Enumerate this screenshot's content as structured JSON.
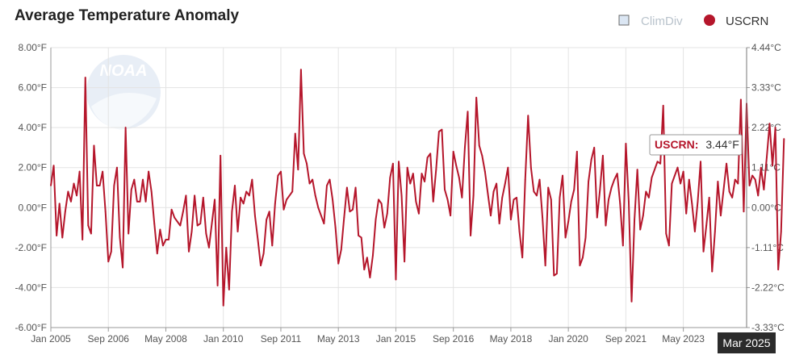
{
  "colors": {
    "series": "#b5162b",
    "climdiv_marker_fill": "#dbe6f3",
    "climdiv_marker_stroke": "#6a6a6a",
    "climdiv_label": "#b9c3cc",
    "grid": "#e3e3e3",
    "axis": "#999999",
    "crosshair_label_bg": "#2b2b2b",
    "logo": "#e8eef6"
  },
  "logo_text": "NOAA",
  "chart_data": {
    "type": "line",
    "title": "Average Temperature Anomaly",
    "legend": {
      "placement": "top-right",
      "items": [
        {
          "name": "ClimDiv",
          "marker": "square",
          "active": false
        },
        {
          "name": "USCRN",
          "marker": "circle",
          "active": true
        }
      ]
    },
    "y_left": {
      "range": [
        -6,
        8
      ],
      "tick_values": [
        -6,
        -4,
        -2,
        0,
        2,
        4,
        6,
        8
      ],
      "tick_labels": [
        "-6.00°F",
        "-4.00°F",
        "-2.00°F",
        "0.00°F",
        "2.00°F",
        "4.00°F",
        "6.00°F",
        "8.00°F"
      ]
    },
    "y_right": {
      "tick_labels": [
        "-3.33°C",
        "-2.22°C",
        "-1.11°C",
        "0.00°C",
        "1.11°C",
        "2.22°C",
        "3.33°C",
        "4.44°C"
      ]
    },
    "x_axis": {
      "range": [
        "2005-01",
        "2025-03"
      ],
      "tick_labels": [
        "Jan 2005",
        "Sep 2006",
        "May 2008",
        "Jan 2010",
        "Sep 2011",
        "May 2013",
        "Jan 2015",
        "Sep 2016",
        "May 2018",
        "Jan 2020",
        "Sep 2021",
        "May 2023"
      ],
      "tick_dates": [
        "2005-01",
        "2006-09",
        "2008-05",
        "2010-01",
        "2011-09",
        "2013-05",
        "2015-01",
        "2016-09",
        "2018-05",
        "2020-01",
        "2021-09",
        "2023-05"
      ]
    },
    "grid": true,
    "crosshair": {
      "date": "2025-03",
      "label": "Mar 2025"
    },
    "tooltip": {
      "series": "USCRN:",
      "value": "3.44°F"
    },
    "series": [
      {
        "name": "USCRN",
        "start": "2005-01",
        "frequency": "monthly",
        "values": [
          1.1,
          2.1,
          -1.4,
          0.2,
          -1.5,
          -0.2,
          0.8,
          0.3,
          1.2,
          0.6,
          1.8,
          -1.6,
          6.5,
          -0.9,
          -1.3,
          3.1,
          1.1,
          1.1,
          1.8,
          -0.2,
          -2.7,
          -2.2,
          1.1,
          2.0,
          -1.5,
          -3.0,
          4.0,
          -1.3,
          0.9,
          1.4,
          0.3,
          0.3,
          1.4,
          0.3,
          1.8,
          0.8,
          -0.8,
          -2.3,
          -1.1,
          -1.9,
          -1.6,
          -1.6,
          -0.1,
          -0.5,
          -0.7,
          -0.9,
          -0.2,
          0.6,
          -2.2,
          -1.2,
          0.6,
          -0.9,
          -0.8,
          0.5,
          -1.3,
          -2.0,
          -0.8,
          0.4,
          -3.9,
          2.6,
          -4.9,
          -2.0,
          -4.1,
          -0.2,
          1.1,
          -1.2,
          0.5,
          0.2,
          0.8,
          0.6,
          1.4,
          -0.4,
          -1.6,
          -2.9,
          -2.3,
          -0.6,
          -0.2,
          -1.9,
          0.2,
          1.6,
          1.8,
          -0.1,
          0.4,
          0.6,
          0.8,
          3.7,
          1.9,
          6.9,
          2.7,
          2.2,
          1.2,
          1.4,
          0.6,
          0.0,
          -0.4,
          -0.8,
          1.1,
          1.4,
          0.4,
          -1.0,
          -2.8,
          -2.1,
          -0.5,
          1.0,
          -0.2,
          -0.1,
          1.0,
          -1.4,
          -1.5,
          -3.1,
          -2.5,
          -3.5,
          -2.4,
          -0.6,
          0.4,
          0.2,
          -1.0,
          -0.3,
          1.5,
          2.2,
          -3.6,
          2.3,
          0.6,
          -2.7,
          2.0,
          1.2,
          1.7,
          0.3,
          -0.3,
          1.7,
          1.3,
          2.5,
          2.7,
          0.3,
          1.9,
          3.8,
          3.9,
          0.9,
          0.4,
          -0.4,
          2.8,
          2.1,
          1.5,
          0.5,
          3.0,
          4.8,
          -1.4,
          0.6,
          5.5,
          3.1,
          2.6,
          1.8,
          0.7,
          -0.4,
          0.8,
          1.2,
          -0.8,
          0.5,
          1.2,
          2.0,
          -0.6,
          0.4,
          0.5,
          -1.2,
          -2.5,
          1.4,
          4.6,
          2.0,
          0.8,
          0.6,
          1.4,
          -0.5,
          -2.9,
          1.0,
          0.4,
          -3.4,
          -3.3,
          0.5,
          1.6,
          -1.5,
          -0.7,
          0.3,
          0.9,
          2.8,
          -2.9,
          -2.5,
          -1.5,
          1.3,
          2.4,
          3.0,
          -0.5,
          0.9,
          2.6,
          -0.9,
          0.4,
          1.0,
          1.4,
          1.7,
          0.2,
          -1.9,
          3.2,
          0.3,
          -4.7,
          -0.6,
          1.9,
          -1.1,
          -0.4,
          0.8,
          0.5,
          1.5,
          1.9,
          2.3,
          2.2,
          5.1,
          -1.3,
          -1.9,
          1.2,
          1.6,
          2.0,
          1.2,
          1.8,
          -0.3,
          1.4,
          0.2,
          -1.2,
          0.3,
          2.3,
          -2.2,
          -0.9,
          0.5,
          -3.2,
          -1.2,
          1.3,
          -0.4,
          0.9,
          2.2,
          0.8,
          0.5,
          1.4,
          1.2,
          5.4,
          -0.2,
          5.2,
          1.1,
          1.6,
          1.4,
          0.6,
          2.0,
          0.9,
          2.5,
          4.2,
          2.1,
          4.0,
          -3.1,
          -1.2,
          3.44
        ]
      }
    ]
  }
}
